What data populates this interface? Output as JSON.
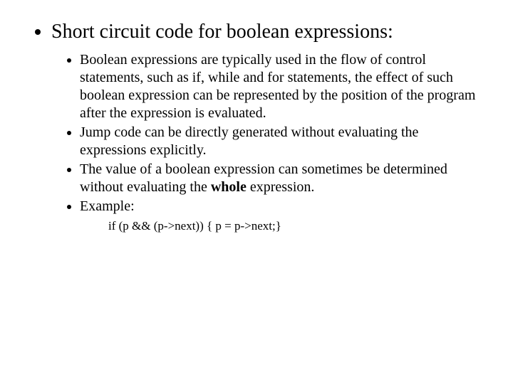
{
  "slide": {
    "title": "Short circuit code for boolean expressions:",
    "bullets": [
      "Boolean expressions are typically used in the flow of control statements, such as if, while and for statements, the effect of such boolean expression can be represented by the position of the program after the expression is evaluated.",
      "Jump code can be directly generated without evaluating the expressions explicitly.",
      "The value of a boolean expression can sometimes be determined without evaluating the ",
      "Example:"
    ],
    "whole_word": "whole",
    "after_whole": " expression.",
    "code": "if (p && (p->next)) { p = p->next;}"
  },
  "style": {
    "background_color": "#ffffff",
    "text_color": "#000000",
    "title_fontsize": 28,
    "body_fontsize": 20,
    "code_fontsize": 17,
    "font_family": "Times New Roman"
  }
}
